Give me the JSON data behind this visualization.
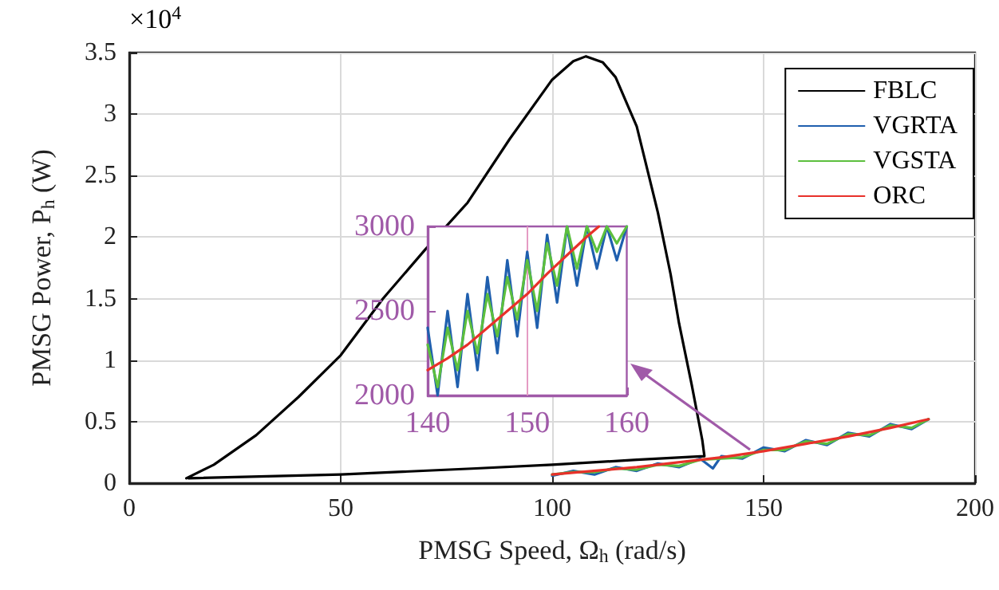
{
  "chart_data": [
    {
      "type": "line",
      "xlabel": "PMSG Speed, Ω$_{h}$ (rad/s)",
      "ylabel": "PMSG Power, P$_{h}$ (W)",
      "annotations": [
        "×10$^{4}$"
      ],
      "xlim": [
        0,
        200
      ],
      "xticks": [
        0,
        50,
        100,
        150,
        200
      ],
      "ylim": [
        0,
        3.5
      ],
      "yticks": [
        0,
        0.5,
        1,
        1.5,
        2,
        2.5,
        3,
        3.5
      ],
      "grid": true,
      "legend": "top right",
      "line_style": "solid",
      "marker": "none",
      "series": [
        {
          "name": "FBLC",
          "color": "#000000",
          "x": [
            13.5,
            20,
            30,
            40,
            50,
            60,
            70,
            80,
            90,
            100,
            105,
            108,
            112,
            115,
            120,
            125,
            128,
            130,
            133,
            135.5,
            136,
            120,
            100,
            82,
            50,
            14
          ],
          "values": [
            0.04,
            0.15,
            0.39,
            0.7,
            1.04,
            1.5,
            1.9,
            2.28,
            2.8,
            3.28,
            3.43,
            3.47,
            3.42,
            3.3,
            2.9,
            2.2,
            1.7,
            1.3,
            0.8,
            0.35,
            0.22,
            0.19,
            0.15,
            0.12,
            0.07,
            0.04
          ]
        },
        {
          "name": "VGRTA",
          "color": "#1f5fae",
          "x": [
            100,
            105,
            110,
            115,
            120,
            125,
            130,
            135,
            138,
            140,
            145,
            150,
            155,
            160,
            165,
            170,
            175,
            180,
            185,
            189
          ],
          "values": [
            0.06,
            0.1,
            0.07,
            0.13,
            0.1,
            0.16,
            0.13,
            0.2,
            0.12,
            0.22,
            0.2,
            0.29,
            0.26,
            0.35,
            0.31,
            0.41,
            0.38,
            0.48,
            0.44,
            0.52
          ]
        },
        {
          "name": "VGSTA",
          "color": "#5cbf3e",
          "x": [
            100,
            105,
            110,
            115,
            120,
            125,
            130,
            135,
            140,
            145,
            150,
            155,
            160,
            165,
            170,
            175,
            180,
            185,
            189
          ],
          "values": [
            0.07,
            0.09,
            0.09,
            0.12,
            0.11,
            0.15,
            0.14,
            0.19,
            0.2,
            0.21,
            0.27,
            0.27,
            0.34,
            0.32,
            0.4,
            0.39,
            0.47,
            0.45,
            0.52
          ]
        },
        {
          "name": "ORC",
          "color": "#e8312b",
          "x": [
            100,
            120,
            140,
            150,
            160,
            170,
            180,
            189
          ],
          "values": [
            0.07,
            0.13,
            0.21,
            0.26,
            0.32,
            0.38,
            0.45,
            0.52
          ]
        }
      ]
    },
    {
      "type": "line",
      "xlim": [
        140,
        160
      ],
      "xticks": [
        140,
        150,
        160
      ],
      "ylim": [
        2000,
        3000
      ],
      "yticks": [
        2000,
        2500,
        3000
      ],
      "ref_lines": [
        {
          "axis": "x",
          "value": 150,
          "color": "#e59cc4"
        }
      ],
      "line_style": "solid",
      "marker": "none",
      "series": [
        {
          "color": "#1f5fae",
          "x": [
            140,
            141,
            142,
            143,
            144,
            145,
            146,
            147,
            148,
            149,
            150,
            151,
            152,
            153,
            154,
            155,
            156,
            157,
            158,
            159,
            160
          ],
          "values": [
            2400,
            2000,
            2500,
            2050,
            2600,
            2150,
            2700,
            2250,
            2800,
            2350,
            2850,
            2400,
            2950,
            2550,
            3000,
            2650,
            3000,
            2750,
            3000,
            2800,
            3000
          ]
        },
        {
          "color": "#5cbf3e",
          "x": [
            140,
            141,
            142,
            143,
            144,
            145,
            146,
            147,
            148,
            149,
            150,
            151,
            152,
            153,
            154,
            155,
            156,
            157,
            158,
            159,
            160
          ],
          "values": [
            2300,
            2050,
            2400,
            2150,
            2500,
            2250,
            2600,
            2350,
            2700,
            2450,
            2800,
            2500,
            2900,
            2650,
            3000,
            2750,
            3000,
            2850,
            3000,
            2900,
            3000
          ]
        },
        {
          "color": "#e8312b",
          "x": [
            140,
            142,
            144,
            146,
            148,
            150,
            152,
            154,
            156,
            157.2
          ],
          "values": [
            2150,
            2220,
            2300,
            2400,
            2500,
            2600,
            2720,
            2830,
            2940,
            3000
          ]
        }
      ]
    }
  ]
}
